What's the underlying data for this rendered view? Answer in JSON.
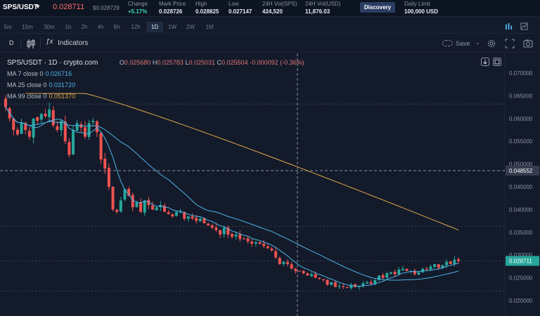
{
  "ticker": {
    "pair": "SPS/USDT",
    "last_price": "0.028711",
    "sub_price": "$0.028729",
    "stats": [
      {
        "label": "Change",
        "value": "+5.17%",
        "positive": true
      },
      {
        "label": "Mark Price",
        "value": "0.028726"
      },
      {
        "label": "High",
        "value": "0.028825"
      },
      {
        "label": "Low",
        "value": "0.027147"
      },
      {
        "label": "24H Vol(SPS)",
        "value": "424,520"
      },
      {
        "label": "24H Vol(USD)",
        "value": "11,876.03"
      }
    ],
    "discovery_label": "Discovery",
    "daily_limit": {
      "label": "Daily Limit",
      "value": "100,000 USD"
    }
  },
  "timeframes": [
    "5m",
    "15m",
    "30m",
    "1h",
    "2h",
    "4h",
    "6h",
    "12h",
    "1D",
    "1W",
    "2W",
    "1M"
  ],
  "active_timeframe": "1D",
  "toolbar": {
    "interval_label": "D",
    "indicators_label": "Indicators",
    "save_label": "Save"
  },
  "legend": {
    "symbol": "SPS/USDT · 1D · crypto.com",
    "ohlc": {
      "o_label": "O",
      "o": "0.025680",
      "h_label": "H",
      "h": "0.025783",
      "l_label": "L",
      "l": "0.025031",
      "c_label": "C",
      "c": "0.025504",
      "change": "-0.000092 (-0.36%)"
    },
    "ma": [
      {
        "label": "MA 7 close 0",
        "value": "0.026716",
        "color": "#4fb3e8"
      },
      {
        "label": "MA 25 close 0",
        "value": "0.031720",
        "color": "#4fb3e8"
      },
      {
        "label": "MA 99 close 0",
        "value": "0.051370",
        "color": "#e0a84a"
      }
    ]
  },
  "price_axis": {
    "ticks": [
      "0.070000",
      "0.065000",
      "0.060000",
      "0.055000",
      "0.050000",
      "0.045000",
      "0.040000",
      "0.035000",
      "0.030000",
      "0.025000",
      "0.020000"
    ],
    "crosshair_label": "0.048552",
    "last_label": "0.028711"
  },
  "colors": {
    "up": "#26a69a",
    "down": "#ef5350",
    "ma_fast": "#4fb3e8",
    "ma_slow": "#e0a84a",
    "bg": "#131a2a"
  },
  "chart_data": {
    "type": "candlestick",
    "ylim": [
      0.0185,
      0.0735
    ],
    "closes": [
      0.0625,
      0.06,
      0.0575,
      0.0565,
      0.059,
      0.0575,
      0.056,
      0.06,
      0.0595,
      0.061,
      0.0605,
      0.062,
      0.0585,
      0.0575,
      0.0595,
      0.055,
      0.052,
      0.0575,
      0.059,
      0.058,
      0.056,
      0.059,
      0.0595,
      0.057,
      0.051,
      0.049,
      0.045,
      0.04,
      0.0395,
      0.042,
      0.0445,
      0.043,
      0.0405,
      0.0415,
      0.0395,
      0.042,
      0.041,
      0.04,
      0.0405,
      0.041,
      0.0395,
      0.039,
      0.0385,
      0.0395,
      0.0395,
      0.038,
      0.0385,
      0.038,
      0.0375,
      0.038,
      0.037,
      0.0365,
      0.036,
      0.0355,
      0.0345,
      0.036,
      0.0345,
      0.034,
      0.0345,
      0.0335,
      0.0335,
      0.033,
      0.0325,
      0.0328,
      0.0325,
      0.032,
      0.0315,
      0.031,
      0.0295,
      0.028,
      0.0285,
      0.028,
      0.027,
      0.0265,
      0.0265,
      0.026,
      0.0255,
      0.0258,
      0.025,
      0.0248,
      0.0245,
      0.0235,
      0.024,
      0.023,
      0.0232,
      0.023,
      0.0228,
      0.0235,
      0.023,
      0.0232,
      0.0238,
      0.024,
      0.0237,
      0.0245,
      0.0255,
      0.025,
      0.026,
      0.0262,
      0.0258,
      0.0268,
      0.027,
      0.0265,
      0.0265,
      0.0258,
      0.0262,
      0.027,
      0.0268,
      0.0275,
      0.028,
      0.0272,
      0.0278,
      0.0285,
      0.028,
      0.029,
      0.0287
    ]
  }
}
